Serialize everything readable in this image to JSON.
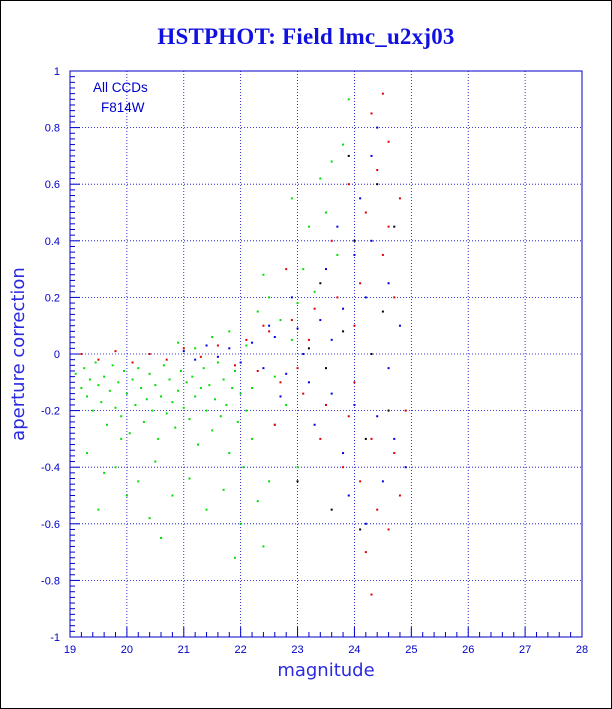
{
  "chart_data": {
    "type": "scatter",
    "title": "HSTPHOT: Field lmc_u2xj03",
    "xlabel": "magnitude",
    "ylabel": "aperture correction",
    "xlim": [
      19,
      28
    ],
    "ylim": [
      -1,
      1
    ],
    "x_ticks": [
      "19",
      "20",
      "21",
      "22",
      "23",
      "24",
      "25",
      "26",
      "27",
      "28"
    ],
    "y_ticks": [
      "-1",
      "-0.8",
      "-0.6",
      "-0.4",
      "-0.2",
      "0",
      "0.2",
      "0.4",
      "0.6",
      "0.8",
      "1"
    ],
    "grid": true,
    "annotations": [
      "All CCDs",
      "F814W"
    ],
    "colors": {
      "axis": "#0000c8",
      "grid": "#0000c8",
      "title": "#1010e0",
      "green": "#00e000",
      "red": "#e00000",
      "blue": "#0000e0",
      "black": "#000000"
    },
    "series": [
      {
        "color": "green",
        "points": [
          [
            19.1,
            -0.07
          ],
          [
            19.2,
            -0.12
          ],
          [
            19.25,
            -0.05
          ],
          [
            19.3,
            -0.15
          ],
          [
            19.35,
            -0.09
          ],
          [
            19.4,
            -0.2
          ],
          [
            19.45,
            -0.03
          ],
          [
            19.5,
            -0.11
          ],
          [
            19.55,
            -0.17
          ],
          [
            19.6,
            -0.08
          ],
          [
            19.65,
            -0.25
          ],
          [
            19.7,
            -0.13
          ],
          [
            19.75,
            -0.04
          ],
          [
            19.8,
            -0.19
          ],
          [
            19.85,
            -0.1
          ],
          [
            19.9,
            -0.22
          ],
          [
            19.95,
            -0.06
          ],
          [
            20.0,
            -0.14
          ],
          [
            20.05,
            -0.28
          ],
          [
            20.1,
            -0.09
          ],
          [
            20.15,
            -0.18
          ],
          [
            20.2,
            -0.05
          ],
          [
            20.25,
            -0.12
          ],
          [
            20.3,
            -0.24
          ],
          [
            20.35,
            -0.16
          ],
          [
            20.4,
            -0.07
          ],
          [
            20.45,
            -0.2
          ],
          [
            20.5,
            -0.11
          ],
          [
            20.55,
            -0.3
          ],
          [
            20.6,
            -0.15
          ],
          [
            20.65,
            -0.04
          ],
          [
            20.7,
            -0.21
          ],
          [
            20.75,
            -0.09
          ],
          [
            20.8,
            -0.17
          ],
          [
            20.85,
            -0.26
          ],
          [
            20.9,
            -0.13
          ],
          [
            20.95,
            -0.06
          ],
          [
            21.0,
            -0.19
          ],
          [
            21.05,
            -0.1
          ],
          [
            21.1,
            -0.23
          ],
          [
            21.15,
            -0.08
          ],
          [
            21.2,
            -0.15
          ],
          [
            21.25,
            -0.32
          ],
          [
            21.3,
            -0.12
          ],
          [
            21.35,
            -0.05
          ],
          [
            21.4,
            -0.2
          ],
          [
            21.45,
            -0.11
          ],
          [
            21.5,
            -0.27
          ],
          [
            21.55,
            -0.16
          ],
          [
            21.6,
            -0.03
          ],
          [
            21.65,
            -0.22
          ],
          [
            21.7,
            -0.09
          ],
          [
            21.75,
            -0.18
          ],
          [
            21.8,
            -0.35
          ],
          [
            21.85,
            -0.12
          ],
          [
            21.9,
            -0.06
          ],
          [
            21.95,
            -0.24
          ],
          [
            22.0,
            -0.14
          ],
          [
            22.05,
            -0.4
          ],
          [
            22.1,
            -0.2
          ],
          [
            19.3,
            -0.35
          ],
          [
            19.6,
            -0.42
          ],
          [
            19.9,
            -0.3
          ],
          [
            20.2,
            -0.45
          ],
          [
            20.5,
            -0.38
          ],
          [
            20.8,
            -0.5
          ],
          [
            21.1,
            -0.44
          ],
          [
            21.4,
            -0.55
          ],
          [
            21.7,
            -0.48
          ],
          [
            22.0,
            -0.6
          ],
          [
            22.3,
            -0.52
          ],
          [
            22.5,
            -0.45
          ],
          [
            20.0,
            -0.5
          ],
          [
            20.4,
            -0.58
          ],
          [
            19.8,
            -0.4
          ],
          [
            21.9,
            -0.72
          ],
          [
            22.4,
            -0.68
          ],
          [
            19.5,
            -0.55
          ],
          [
            20.6,
            -0.65
          ],
          [
            22.2,
            -0.3
          ],
          [
            22.6,
            -0.25
          ],
          [
            22.8,
            -0.18
          ],
          [
            23.0,
            -0.4
          ],
          [
            22.9,
            0.05
          ],
          [
            22.7,
            0.12
          ],
          [
            22.5,
            0.2
          ],
          [
            22.3,
            0.15
          ],
          [
            22.4,
            0.28
          ],
          [
            23.1,
            0.3
          ],
          [
            23.2,
            0.45
          ],
          [
            22.9,
            0.55
          ],
          [
            23.4,
            0.62
          ],
          [
            23.6,
            0.68
          ],
          [
            23.8,
            0.74
          ],
          [
            23.9,
            0.9
          ],
          [
            23.5,
            0.5
          ],
          [
            23.7,
            0.35
          ],
          [
            23.3,
            0.22
          ],
          [
            23.0,
            0.18
          ],
          [
            22.1,
            0.03
          ],
          [
            21.8,
            0.08
          ],
          [
            21.5,
            0.06
          ],
          [
            21.2,
            0.02
          ],
          [
            20.9,
            0.04
          ],
          [
            22.6,
            -0.08
          ],
          [
            22.2,
            -0.12
          ]
        ]
      },
      {
        "color": "red",
        "points": [
          [
            19.2,
            0.0
          ],
          [
            19.5,
            -0.02
          ],
          [
            19.8,
            0.01
          ],
          [
            20.1,
            -0.03
          ],
          [
            20.4,
            0.0
          ],
          [
            20.7,
            -0.02
          ],
          [
            21.0,
            0.02
          ],
          [
            21.3,
            -0.01
          ],
          [
            21.6,
            0.03
          ],
          [
            21.9,
            -0.04
          ],
          [
            22.1,
            0.05
          ],
          [
            22.3,
            -0.06
          ],
          [
            22.5,
            0.08
          ],
          [
            22.7,
            -0.1
          ],
          [
            22.9,
            0.12
          ],
          [
            23.1,
            -0.14
          ],
          [
            23.3,
            0.16
          ],
          [
            23.5,
            -0.18
          ],
          [
            23.7,
            0.2
          ],
          [
            23.9,
            -0.22
          ],
          [
            24.1,
            0.25
          ],
          [
            24.3,
            -0.3
          ],
          [
            24.5,
            0.35
          ],
          [
            24.2,
            0.5
          ],
          [
            24.4,
            0.65
          ],
          [
            24.6,
            0.75
          ],
          [
            24.3,
            0.85
          ],
          [
            24.5,
            0.92
          ],
          [
            24.1,
            -0.45
          ],
          [
            24.4,
            -0.55
          ],
          [
            24.6,
            -0.62
          ],
          [
            24.8,
            -0.5
          ],
          [
            24.2,
            -0.7
          ],
          [
            24.7,
            -0.35
          ],
          [
            23.8,
            -0.4
          ],
          [
            23.6,
            0.4
          ],
          [
            24.0,
            0.1
          ],
          [
            24.8,
            0.55
          ],
          [
            24.9,
            -0.2
          ],
          [
            23.4,
            -0.3
          ],
          [
            22.8,
            0.3
          ],
          [
            22.6,
            -0.25
          ],
          [
            23.2,
            0.05
          ],
          [
            24.3,
            -0.85
          ],
          [
            24.6,
            0.45
          ],
          [
            23.9,
            0.6
          ],
          [
            24.7,
            0.2
          ],
          [
            24.0,
            -0.1
          ],
          [
            22.4,
            0.1
          ],
          [
            23.0,
            -0.05
          ]
        ]
      },
      {
        "color": "blue",
        "points": [
          [
            21.0,
            0.01
          ],
          [
            21.2,
            -0.02
          ],
          [
            21.4,
            0.03
          ],
          [
            21.6,
            -0.01
          ],
          [
            21.8,
            0.02
          ],
          [
            22.0,
            -0.03
          ],
          [
            22.2,
            0.04
          ],
          [
            22.4,
            -0.05
          ],
          [
            22.6,
            0.06
          ],
          [
            22.8,
            -0.07
          ],
          [
            23.0,
            0.09
          ],
          [
            23.2,
            -0.1
          ],
          [
            23.4,
            0.12
          ],
          [
            23.6,
            -0.14
          ],
          [
            23.8,
            0.16
          ],
          [
            24.0,
            -0.18
          ],
          [
            24.2,
            0.2
          ],
          [
            24.4,
            -0.22
          ],
          [
            24.6,
            0.25
          ],
          [
            23.7,
            0.45
          ],
          [
            24.1,
            0.55
          ],
          [
            24.3,
            0.7
          ],
          [
            24.4,
            0.8
          ],
          [
            24.0,
            0.35
          ],
          [
            24.5,
            -0.45
          ],
          [
            24.7,
            -0.3
          ],
          [
            24.2,
            -0.6
          ],
          [
            23.9,
            -0.5
          ],
          [
            23.5,
            0.3
          ],
          [
            23.3,
            -0.25
          ],
          [
            22.9,
            0.2
          ],
          [
            22.7,
            -0.15
          ],
          [
            23.1,
            0.0
          ],
          [
            24.8,
            0.1
          ],
          [
            24.6,
            -0.05
          ],
          [
            23.8,
            -0.35
          ],
          [
            24.3,
            0.4
          ],
          [
            22.5,
            0.1
          ],
          [
            23.6,
            0.05
          ],
          [
            24.9,
            -0.4
          ]
        ]
      },
      {
        "color": "black",
        "points": [
          [
            23.2,
            0.02
          ],
          [
            23.5,
            -0.05
          ],
          [
            23.8,
            0.08
          ],
          [
            24.0,
            0.4
          ],
          [
            24.2,
            -0.3
          ],
          [
            24.4,
            0.6
          ],
          [
            23.6,
            -0.55
          ],
          [
            23.9,
            0.7
          ],
          [
            24.1,
            -0.62
          ],
          [
            24.5,
            0.15
          ],
          [
            23.4,
            0.25
          ],
          [
            24.6,
            -0.2
          ],
          [
            23.0,
            -0.45
          ],
          [
            24.3,
            0.0
          ],
          [
            24.7,
            0.45
          ]
        ]
      }
    ]
  }
}
